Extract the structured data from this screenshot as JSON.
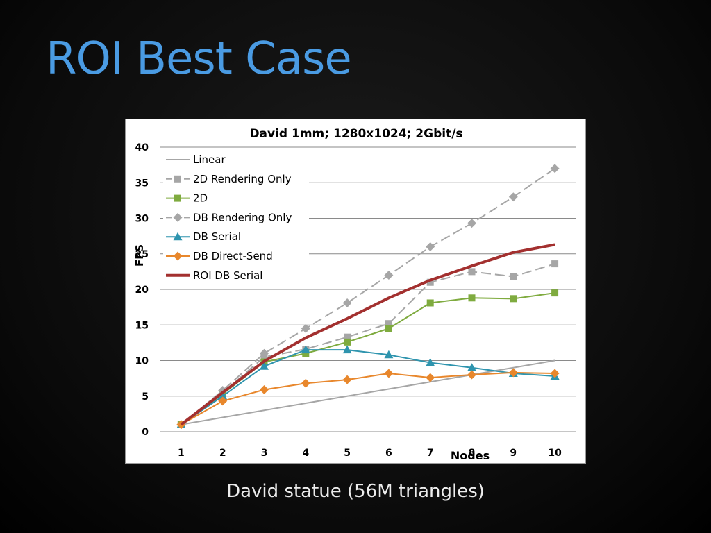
{
  "slide": {
    "title": "ROI Best Case",
    "caption": "David statue (56M triangles)"
  },
  "chart_data": {
    "type": "line",
    "title": "David 1mm; 1280x1024; 2Gbit/s",
    "xlabel": "Nodes",
    "ylabel": "FPS",
    "x": [
      1,
      2,
      3,
      4,
      5,
      6,
      7,
      8,
      9,
      10
    ],
    "xlim": [
      1,
      10
    ],
    "ylim": [
      0,
      40
    ],
    "yticks": [
      0,
      5,
      10,
      15,
      20,
      25,
      30,
      35,
      40
    ],
    "grid": "horizontal",
    "legend_position": "top-left",
    "series": [
      {
        "name": "Linear",
        "color": "#a6a6a6",
        "marker": "none",
        "dash": "solid",
        "width": 2,
        "values": [
          1,
          2,
          3,
          4,
          5,
          6,
          7,
          8,
          9,
          10
        ]
      },
      {
        "name": "2D Rendering Only",
        "color": "#a6a6a6",
        "marker": "square",
        "dash": "dashed",
        "width": 2,
        "values": [
          1,
          5.5,
          10.5,
          11.6,
          13.3,
          15.2,
          21,
          22.5,
          21.8,
          23.6
        ]
      },
      {
        "name": "2D",
        "color": "#7fab3f",
        "marker": "square",
        "dash": "solid",
        "width": 2,
        "values": [
          1,
          5.3,
          9.8,
          11,
          12.6,
          14.5,
          18.1,
          18.8,
          18.7,
          19.5
        ]
      },
      {
        "name": "DB Rendering Only",
        "color": "#a6a6a6",
        "marker": "diamond",
        "dash": "dashed",
        "width": 2,
        "values": [
          1,
          5.8,
          11,
          14.5,
          18.1,
          22,
          26,
          29.3,
          33,
          37
        ]
      },
      {
        "name": "DB Serial",
        "color": "#2e94ae",
        "marker": "triangle",
        "dash": "solid",
        "width": 2,
        "values": [
          1,
          5,
          9.2,
          11.5,
          11.5,
          10.8,
          9.7,
          9,
          8.2,
          7.8
        ]
      },
      {
        "name": "DB Direct-Send",
        "color": "#e8872c",
        "marker": "diamond",
        "dash": "solid",
        "width": 2,
        "values": [
          1,
          4.3,
          5.9,
          6.8,
          7.3,
          8.2,
          7.6,
          8,
          8.3,
          8.2
        ]
      },
      {
        "name": "ROI DB Serial",
        "color": "#a3302f",
        "marker": "none",
        "dash": "solid",
        "width": 4,
        "values": [
          1,
          5.5,
          9.9,
          13.2,
          15.9,
          18.8,
          21.3,
          23.3,
          25.2,
          26.3
        ]
      }
    ]
  }
}
